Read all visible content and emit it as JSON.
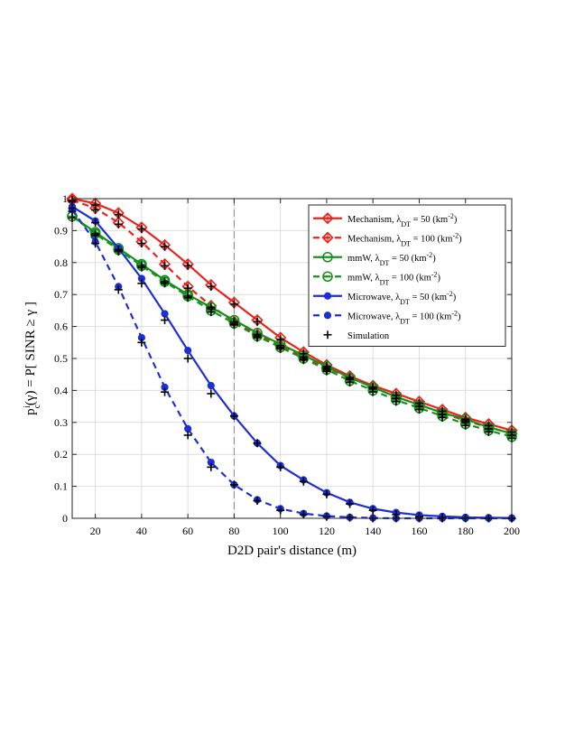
{
  "chart_data": {
    "type": "line",
    "title": "",
    "xlabel": "D2D pair's distance (m)",
    "ylabel": "p_c^i(γ) = P[ SINR ≥ γ ]",
    "ylabel_parts": {
      "p": "p",
      "sub": "c",
      "sup": "i",
      "rest": "(γ) = P[ SINR ≥ γ ]"
    },
    "xlim": [
      10,
      200
    ],
    "ylim": [
      0,
      1
    ],
    "x_ticks": [
      20,
      40,
      60,
      80,
      100,
      120,
      140,
      160,
      180,
      200
    ],
    "y_ticks": [
      0,
      0.1,
      0.2,
      0.3,
      0.4,
      0.5,
      0.6,
      0.7,
      0.8,
      0.9,
      1
    ],
    "grid": true,
    "legend_position": "top-right",
    "reference_line_x": 80,
    "x": [
      10,
      20,
      30,
      40,
      50,
      60,
      70,
      80,
      90,
      100,
      110,
      120,
      130,
      140,
      150,
      160,
      170,
      180,
      190,
      200
    ],
    "series": [
      {
        "name": "Mechanism, λDT = 50 (km-2)",
        "legend": {
          "prefix": "Mechanism, λ",
          "sub": "DT",
          "mid": " = 50 (km",
          "sup": "-2",
          "suffix": ")"
        },
        "color": "#e8231a",
        "dash": false,
        "marker": "diamond",
        "values": [
          1.0,
          0.985,
          0.955,
          0.91,
          0.855,
          0.795,
          0.73,
          0.675,
          0.62,
          0.565,
          0.52,
          0.48,
          0.445,
          0.415,
          0.39,
          0.365,
          0.34,
          0.315,
          0.295,
          0.275
        ]
      },
      {
        "name": "Mechanism, λDT = 100 (km-2)",
        "legend": {
          "prefix": "Mechanism, λ",
          "sub": "DT",
          "mid": " = 100 (km",
          "sup": "-2",
          "suffix": ")"
        },
        "color": "#e8231a",
        "dash": true,
        "marker": "diamond",
        "values": [
          0.995,
          0.97,
          0.925,
          0.865,
          0.795,
          0.725,
          0.665,
          0.615,
          0.575,
          0.54,
          0.505,
          0.47,
          0.44,
          0.41,
          0.38,
          0.355,
          0.33,
          0.305,
          0.285,
          0.265
        ]
      },
      {
        "name": "mmW, λDT = 50 (km-2)",
        "legend": {
          "prefix": "mmW, λ",
          "sub": "DT",
          "mid": " = 50 (km",
          "sup": "-2",
          "suffix": ")"
        },
        "color": "#17911e",
        "dash": false,
        "marker": "circle",
        "values": [
          0.945,
          0.895,
          0.845,
          0.795,
          0.745,
          0.7,
          0.66,
          0.62,
          0.58,
          0.545,
          0.51,
          0.475,
          0.44,
          0.41,
          0.38,
          0.355,
          0.33,
          0.31,
          0.285,
          0.265
        ]
      },
      {
        "name": "mmW, λDT = 100 (km-2)",
        "legend": {
          "prefix": "mmW, λ",
          "sub": "DT",
          "mid": " = 100 (km",
          "sup": "-2",
          "suffix": ")"
        },
        "color": "#17911e",
        "dash": true,
        "marker": "circle",
        "values": [
          0.945,
          0.89,
          0.84,
          0.79,
          0.74,
          0.695,
          0.65,
          0.61,
          0.57,
          0.535,
          0.5,
          0.465,
          0.43,
          0.4,
          0.37,
          0.345,
          0.32,
          0.295,
          0.275,
          0.255
        ]
      },
      {
        "name": "Microwave, λDT = 50 (km-2)",
        "legend": {
          "prefix": "Microwave, λ",
          "sub": "DT",
          "mid": " = 50 (km",
          "sup": "-2",
          "suffix": ")"
        },
        "color": "#1d2fd6",
        "dash": false,
        "marker": "dot",
        "values": [
          0.975,
          0.93,
          0.845,
          0.75,
          0.64,
          0.525,
          0.415,
          0.32,
          0.235,
          0.165,
          0.12,
          0.08,
          0.05,
          0.03,
          0.018,
          0.01,
          0.006,
          0.003,
          0.002,
          0.001
        ]
      },
      {
        "name": "Microwave, λDT = 100 (km-2)",
        "legend": {
          "prefix": "Microwave, λ",
          "sub": "DT",
          "mid": " = 100 (km",
          "sup": "-2",
          "suffix": ")"
        },
        "color": "#1d2fd6",
        "dash": true,
        "marker": "dot",
        "values": [
          0.965,
          0.865,
          0.725,
          0.565,
          0.41,
          0.28,
          0.175,
          0.105,
          0.058,
          0.03,
          0.015,
          0.007,
          0.003,
          0.001,
          0.0,
          0.0,
          0.0,
          0.0,
          0.0,
          0.0
        ]
      }
    ],
    "simulation": {
      "name": "Simulation",
      "color": "#000000",
      "marker": "plus",
      "series_values": [
        [
          0.995,
          0.98,
          0.95,
          0.905,
          0.85,
          0.79,
          0.725,
          0.67,
          0.615,
          0.56,
          0.515,
          0.475,
          0.44,
          0.41,
          0.385,
          0.36,
          0.335,
          0.31,
          0.29,
          0.27
        ],
        [
          0.99,
          0.965,
          0.92,
          0.86,
          0.79,
          0.72,
          0.66,
          0.61,
          0.57,
          0.535,
          0.5,
          0.465,
          0.435,
          0.405,
          0.375,
          0.35,
          0.325,
          0.3,
          0.28,
          0.26
        ],
        [
          0.94,
          0.89,
          0.84,
          0.79,
          0.74,
          0.695,
          0.655,
          0.615,
          0.575,
          0.54,
          0.505,
          0.47,
          0.435,
          0.405,
          0.375,
          0.35,
          0.325,
          0.305,
          0.28,
          0.26
        ],
        [
          0.94,
          0.885,
          0.835,
          0.785,
          0.735,
          0.69,
          0.645,
          0.605,
          0.565,
          0.53,
          0.495,
          0.46,
          0.425,
          0.395,
          0.365,
          0.34,
          0.315,
          0.29,
          0.27,
          0.25
        ],
        [
          0.97,
          0.925,
          0.84,
          0.735,
          0.62,
          0.5,
          0.39,
          0.32,
          0.235,
          0.16,
          0.115,
          0.075,
          0.045,
          0.025,
          0.012,
          0.005,
          0.002,
          0.001,
          0.0,
          0.0
        ],
        [
          0.96,
          0.86,
          0.715,
          0.55,
          0.395,
          0.26,
          0.16,
          0.105,
          0.055,
          0.025,
          0.012,
          0.005,
          0.002,
          0.0,
          0.0,
          0.0,
          0.0,
          0.0,
          0.0,
          0.0
        ]
      ]
    }
  }
}
